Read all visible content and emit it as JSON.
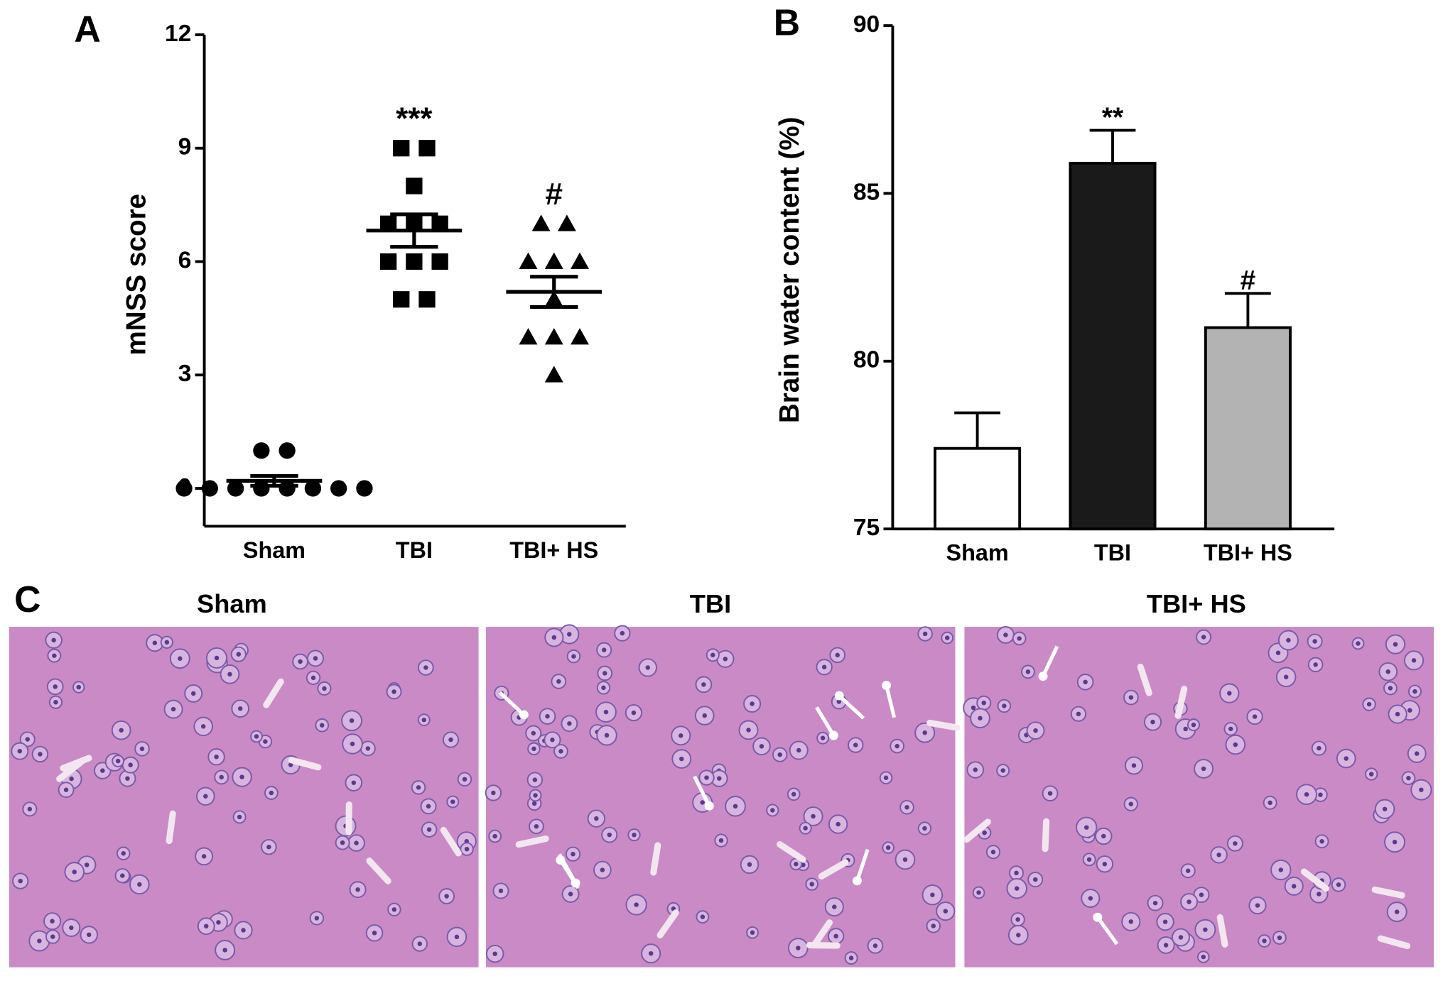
{
  "chart_data": [
    {
      "type": "dot",
      "panel": "A",
      "ylabel": "mNSS score",
      "categories": [
        "Sham",
        "TBI",
        "TBI+ HS"
      ],
      "markers": [
        "circle",
        "square",
        "triangle"
      ],
      "points": [
        [
          1,
          1,
          0,
          0,
          0,
          0,
          0,
          0,
          0,
          0
        ],
        [
          9,
          9,
          8,
          7,
          7,
          7,
          6,
          6,
          6,
          5,
          5
        ],
        [
          7,
          7,
          6,
          6,
          6,
          5,
          4,
          4,
          4,
          3
        ]
      ],
      "means": [
        0.2,
        6.82,
        5.2
      ],
      "sems": [
        0.13,
        0.43,
        0.4
      ],
      "annotations": [
        {
          "category": 1,
          "text": "***"
        },
        {
          "category": 2,
          "text": "#"
        }
      ],
      "ylim": [
        -1,
        12
      ],
      "yticks": [
        0,
        3,
        6,
        9,
        12
      ],
      "color": "#000000"
    },
    {
      "type": "bar",
      "panel": "B",
      "ylabel": "Brain water content  (%)",
      "categories": [
        "Sham",
        "TBI",
        "TBI+ HS"
      ],
      "values": [
        77.4,
        85.9,
        81.0
      ],
      "errors": [
        1.06,
        0.98,
        1.02
      ],
      "colors": [
        "#ffffff",
        "#1a1a1a",
        "#b3b3b3"
      ],
      "annotations": [
        {
          "category": 1,
          "text": "**"
        },
        {
          "category": 2,
          "text": "#"
        }
      ],
      "ylim": [
        75,
        90
      ],
      "yticks": [
        75,
        80,
        85,
        90
      ]
    }
  ],
  "panel_c": {
    "label": "C",
    "titles": [
      "Sham",
      "TBI",
      "TBI+ HS"
    ]
  }
}
